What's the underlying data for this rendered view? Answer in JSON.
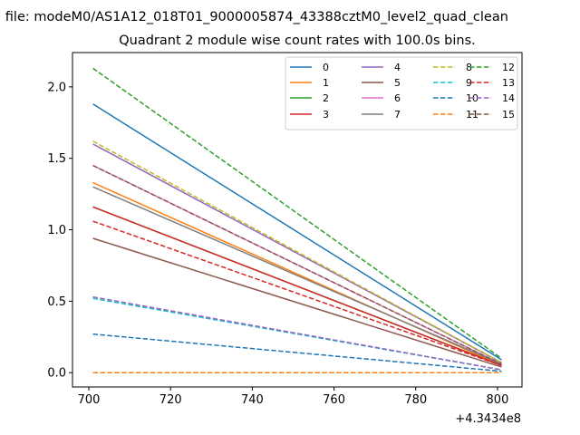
{
  "chart_data": {
    "type": "line",
    "suptitle": "n file: modeM0/AS1A12_018T01_9000005874_43388cztM0_level2_quad_clean",
    "title": "Quadrant 2 module wise count rates with 100.0s bins.",
    "xlabel": "",
    "ylabel": "",
    "x_offset_label": "+4.3434e8",
    "x": [
      701,
      801
    ],
    "xlim": [
      696,
      806
    ],
    "ylim": [
      -0.1,
      2.24
    ],
    "xticks": [
      700,
      720,
      740,
      760,
      780,
      800
    ],
    "xtick_labels": [
      "700",
      "720",
      "740",
      "760",
      "780",
      "800"
    ],
    "yticks": [
      0.0,
      0.5,
      1.0,
      1.5,
      2.0
    ],
    "ytick_labels": [
      "0.0",
      "0.5",
      "1.0",
      "1.5",
      "2.0"
    ],
    "grid": false,
    "legend_position": "top-right",
    "legend_columns": 4,
    "series": [
      {
        "name": "0",
        "color": "#1f77b4",
        "dash": "solid",
        "values": [
          1.88,
          0.09
        ]
      },
      {
        "name": "1",
        "color": "#ff7f0e",
        "dash": "solid",
        "values": [
          1.33,
          0.05
        ]
      },
      {
        "name": "2",
        "color": "#2ca02c",
        "dash": "solid",
        "values": [
          1.16,
          0.05
        ]
      },
      {
        "name": "3",
        "color": "#d62728",
        "dash": "solid",
        "values": [
          1.16,
          0.05
        ]
      },
      {
        "name": "4",
        "color": "#9467bd",
        "dash": "solid",
        "values": [
          1.6,
          0.07
        ]
      },
      {
        "name": "5",
        "color": "#8c564b",
        "dash": "solid",
        "values": [
          0.94,
          0.04
        ]
      },
      {
        "name": "6",
        "color": "#e377c2",
        "dash": "solid",
        "values": [
          1.45,
          0.06
        ]
      },
      {
        "name": "7",
        "color": "#7f7f7f",
        "dash": "solid",
        "values": [
          1.3,
          0.06
        ]
      },
      {
        "name": "8",
        "color": "#bcbd22",
        "dash": "dashed",
        "values": [
          1.62,
          0.07
        ]
      },
      {
        "name": "9",
        "color": "#17becf",
        "dash": "dashed",
        "values": [
          0.52,
          0.02
        ]
      },
      {
        "name": "10",
        "color": "#1f77b4",
        "dash": "dashed",
        "values": [
          0.27,
          0.01
        ]
      },
      {
        "name": "11",
        "color": "#ff7f0e",
        "dash": "dashed",
        "values": [
          0.0,
          0.0
        ]
      },
      {
        "name": "12",
        "color": "#2ca02c",
        "dash": "dashed",
        "values": [
          2.13,
          0.1
        ]
      },
      {
        "name": "13",
        "color": "#d62728",
        "dash": "dashed",
        "values": [
          1.06,
          0.05
        ]
      },
      {
        "name": "14",
        "color": "#9467bd",
        "dash": "dashed",
        "values": [
          0.53,
          0.02
        ]
      },
      {
        "name": "15",
        "color": "#8c564b",
        "dash": "dashed",
        "values": [
          1.45,
          0.06
        ]
      }
    ]
  }
}
